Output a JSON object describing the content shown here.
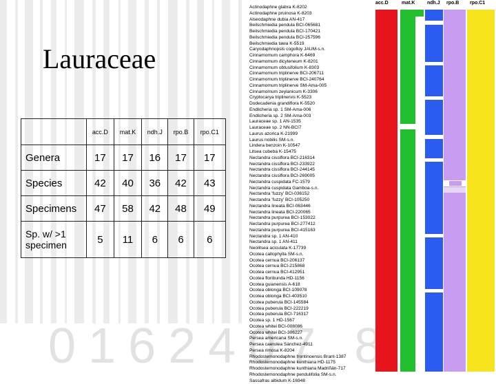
{
  "slide": {
    "title": "Lauraceae",
    "watermark_digits": "0162407 8"
  },
  "table": {
    "columns": [
      "acc.D",
      "mat.K",
      "ndh.J",
      "rpo.B",
      "rpo.C1"
    ],
    "rows": [
      {
        "label": "Genera",
        "values": [
          "17",
          "17",
          "16",
          "17",
          "17"
        ]
      },
      {
        "label": "Species",
        "values": [
          "42",
          "40",
          "36",
          "42",
          "43"
        ]
      },
      {
        "label": "Specimens",
        "values": [
          "47",
          "58",
          "42",
          "48",
          "49"
        ]
      },
      {
        "label": "Sp. w/ >1 specimen",
        "values": [
          "5",
          "11",
          "6",
          "6",
          "6"
        ]
      }
    ]
  },
  "species_list": [
    "Actinodaphne glabra K-8202",
    "Actinodaphne pruinosa K-8203",
    "Alseodaphne dubia AN-417",
    "Beilschmiedia pendula BCI-065681",
    "Beilschmiedia pendula BCI-170421",
    "Beilschmiedia pendula BCI-257596",
    "Beilschmiedia tawa K-5519",
    "Caryodaphnopsis cogolloy JAUM-s.n.",
    "Cinnamomum camphora K-6469",
    "Cinnamomum dicyteneum K-8201",
    "Cinnamomum obtusifolium K-8303",
    "Cinnamomum triplinerve BCI-206711",
    "Cinnamomum triplinerve BCI-240764",
    "Cinnamomum triplinerve SM-Ama-005",
    "Cinnamomum zeylanicum K-3306",
    "Cryptocarya triplinervis K-5523",
    "Dodecadenia grandiflora K-5520",
    "Endlicheria sp. 1 SM-Ama-006",
    "Endlicheria sp. 2 SM-Ama-003",
    "Lauraceae sp. 1 AN-1535",
    "Lauraceae sp. 2 NN-BCI7",
    "Laurus azorica K-21999",
    "Laurus nobilis SM-s.n.",
    "Lindera benzoin K-10547",
    "Litsea cubeba K-15475",
    "Nectandra cissiflora BCI-216314",
    "Nectandra cissiflora BCI-233922",
    "Nectandra cissiflora BCI-244145",
    "Nectandra cissiflora BCI-269005",
    "Nectandra cuspidata FC-1579",
    "Nectandra cuspidata Gamboa-s.n.",
    "Nectandra 'fuzzy' BCI-036152",
    "Nectandra 'fuzzy' BCI-105250",
    "Nectandra lineata BCI-063446",
    "Nectandra lineata BCI-220065",
    "Nectandra purpurea BCI-153022",
    "Nectandra purpurea BCI-277412",
    "Nectandra purpurea BCI-415163",
    "Nectandra sp. 1 AN-410",
    "Nectandra sp. 1 AN-411",
    "Neolitsea aciculata K-17739",
    "Ocotea callophylla SM-s.n.",
    "Ocotea cernua BCI-206137",
    "Ocotea cernua BCI-215868",
    "Ocotea cernua BCI-412951",
    "Ocotea floribunda HD-1156",
    "Ocotea guianensis A-618",
    "Ocotea oblonga BCI-109078",
    "Ocotea oblonga BCI-403510",
    "Ocotea puberula BCI-145584",
    "Ocotea puberula BCI-222219",
    "Ocotea puberula BCI-716317",
    "Ocotea sp. 1 HD-1567",
    "Ocotea whitei BCI-008086",
    "Ocotea whitei BCI-306227",
    "Persea americana SM-s.n.",
    "Persea caerulea Sánchez-4911",
    "Persea rimosa K-8204",
    "Rhodostemonodaphne frontinoensis Brant-1387",
    "Rhodostemonodaphne kunthiana HD-1175",
    "Rhodostemonodaphne kunthiana Madriñán-717",
    "Rhodostemonodaphne pendulifolia SM-s.n.",
    "Sassafras albidum K-16948"
  ],
  "marker_headers": [
    "acc.D",
    "mat.K",
    "ndh.J",
    "rpo.B",
    "rpo.C1"
  ],
  "marker_colors": {
    "acc.D": "#e8141c",
    "mat.K": "#22c02e",
    "ndh.J": "#2a5cf0",
    "rpo.B": "#c89cf0",
    "rpo.C1": "#f7e41c"
  }
}
